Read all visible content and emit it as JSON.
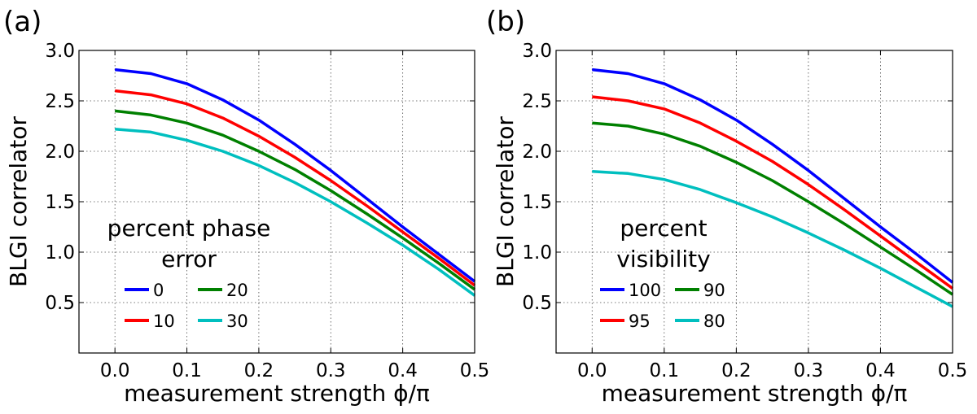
{
  "chart_data": [
    {
      "type": "line",
      "panel_label": "(a)",
      "xlabel": "measurement strength ϕ/π",
      "ylabel": "BLGI correlator",
      "xlim": [
        -0.05,
        0.5
      ],
      "ylim": [
        0.0,
        3.0
      ],
      "xticks": [
        "0.0",
        "0.1",
        "0.2",
        "0.3",
        "0.4",
        "0.5"
      ],
      "yticks": [
        "0.5",
        "1.0",
        "1.5",
        "2.0",
        "2.5",
        "3.0"
      ],
      "grid": true,
      "legend": {
        "title_lines": [
          "percent phase",
          "error"
        ],
        "placement": "lower-left",
        "ncol": 2
      },
      "x": [
        0.0,
        0.05,
        0.1,
        0.15,
        0.2,
        0.25,
        0.3,
        0.35,
        0.4,
        0.45,
        0.5
      ],
      "series": [
        {
          "name": "0",
          "color": "#0000ff",
          "values": [
            2.81,
            2.77,
            2.67,
            2.51,
            2.31,
            2.07,
            1.81,
            1.53,
            1.25,
            0.98,
            0.71
          ]
        },
        {
          "name": "10",
          "color": "#ff0000",
          "values": [
            2.6,
            2.56,
            2.47,
            2.33,
            2.15,
            1.94,
            1.71,
            1.46,
            1.2,
            0.94,
            0.67
          ]
        },
        {
          "name": "20",
          "color": "#008000",
          "values": [
            2.4,
            2.36,
            2.28,
            2.16,
            2.0,
            1.82,
            1.61,
            1.38,
            1.14,
            0.89,
            0.63
          ]
        },
        {
          "name": "30",
          "color": "#00bfbf",
          "values": [
            2.22,
            2.19,
            2.11,
            2.0,
            1.86,
            1.69,
            1.5,
            1.29,
            1.07,
            0.83,
            0.57
          ]
        }
      ]
    },
    {
      "type": "line",
      "panel_label": "(b)",
      "xlabel": "measurement strength ϕ/π",
      "ylabel": "BLGI correlator",
      "xlim": [
        -0.05,
        0.5
      ],
      "ylim": [
        0.0,
        3.0
      ],
      "xticks": [
        "0.0",
        "0.1",
        "0.2",
        "0.3",
        "0.4",
        "0.5"
      ],
      "yticks": [
        "0.5",
        "1.0",
        "1.5",
        "2.0",
        "2.5",
        "3.0"
      ],
      "grid": true,
      "legend": {
        "title_lines": [
          "percent",
          "visibility"
        ],
        "placement": "lower-left",
        "ncol": 2
      },
      "x": [
        0.0,
        0.05,
        0.1,
        0.15,
        0.2,
        0.25,
        0.3,
        0.35,
        0.4,
        0.45,
        0.5
      ],
      "series": [
        {
          "name": "100",
          "color": "#0000ff",
          "values": [
            2.81,
            2.77,
            2.67,
            2.51,
            2.31,
            2.07,
            1.81,
            1.53,
            1.25,
            0.98,
            0.7
          ]
        },
        {
          "name": "95",
          "color": "#ff0000",
          "values": [
            2.54,
            2.5,
            2.42,
            2.28,
            2.1,
            1.9,
            1.67,
            1.42,
            1.16,
            0.9,
            0.64
          ]
        },
        {
          "name": "90",
          "color": "#008000",
          "values": [
            2.28,
            2.25,
            2.17,
            2.05,
            1.89,
            1.71,
            1.5,
            1.28,
            1.05,
            0.82,
            0.58
          ]
        },
        {
          "name": "80",
          "color": "#00bfbf",
          "values": [
            1.8,
            1.78,
            1.72,
            1.62,
            1.49,
            1.35,
            1.19,
            1.02,
            0.84,
            0.65,
            0.46
          ]
        }
      ]
    }
  ]
}
